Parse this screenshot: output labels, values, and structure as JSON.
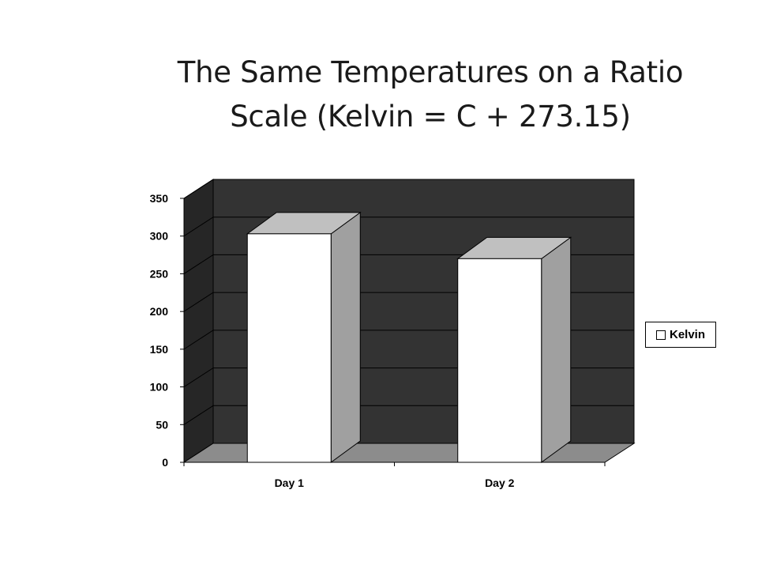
{
  "title_lines": [
    "The Same Temperatures on a Ratio",
    "Scale (Kelvin = C + 273.15)"
  ],
  "chart_data": {
    "type": "bar",
    "categories": [
      "Day 1",
      "Day 2"
    ],
    "series": [
      {
        "name": "Kelvin",
        "values": [
          303,
          270
        ]
      }
    ],
    "ylim": [
      0,
      350
    ],
    "yticks": [
      "0",
      "50",
      "100",
      "150",
      "200",
      "250",
      "300",
      "350"
    ],
    "grid": true,
    "legend": "right",
    "style": "3d",
    "colors": {
      "bar_front": "#ffffff",
      "bar_top": "#c0c0c0",
      "bar_side": "#a0a0a0",
      "back_wall": "#333333",
      "side_wall": "#262626",
      "floor": "#8c8c8c"
    }
  }
}
